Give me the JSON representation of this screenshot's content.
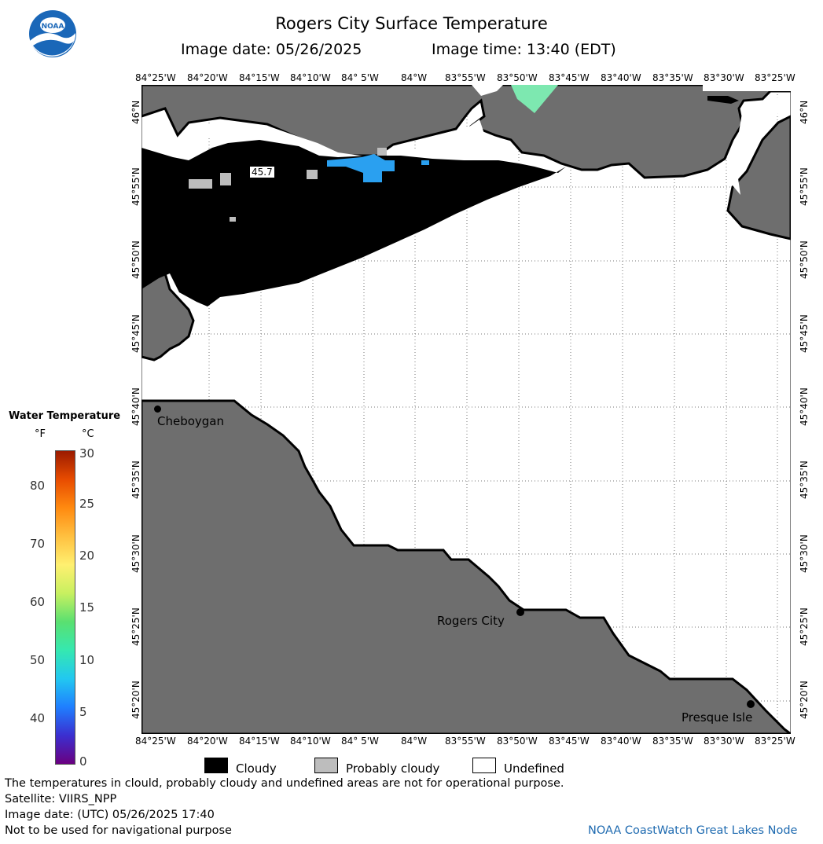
{
  "header": {
    "title": "Rogers City Surface Temperature",
    "image_date": "Image date: 05/26/2025",
    "image_time": "Image time: 13:40 (EDT)"
  },
  "logo": {
    "text": "NOAA"
  },
  "map": {
    "lon_ticks": [
      "84°25'W",
      "84°20'W",
      "84°15'W",
      "84°10'W",
      "84° 5'W",
      "84°W",
      "83°55'W",
      "83°50'W",
      "83°45'W",
      "83°40'W",
      "83°35'W",
      "83°30'W",
      "83°25'W"
    ],
    "lat_ticks": [
      "46°N",
      "45°55'N",
      "45°50'N",
      "45°45'N",
      "45°40'N",
      "45°35'N",
      "45°30'N",
      "45°25'N",
      "45°20'N"
    ],
    "cities": [
      "Cheboygan",
      "Rogers City",
      "Presque Isle"
    ],
    "sample_label": "45.7",
    "colors": {
      "land": "#6e6e6e",
      "cloud": "#000000",
      "undefined": "#ffffff",
      "probably_cloudy": "#bdbdbd",
      "warm_water": "#2aa0f0",
      "green_water": "#7de8b0"
    }
  },
  "legend": {
    "title": "Water Temperature",
    "unit_f": "°F",
    "unit_c": "°C",
    "f_values": [
      "80",
      "70",
      "60",
      "50",
      "40"
    ],
    "c_values": [
      "30",
      "25",
      "20",
      "15",
      "10",
      "5",
      "0"
    ],
    "colormap": [
      "#6a0080",
      "#3b2fd0",
      "#1f7fff",
      "#22c8f0",
      "#35e8b0",
      "#5ae070",
      "#c8f060",
      "#fff070",
      "#ffc040",
      "#ff8a10",
      "#e84c00",
      "#9b1b00"
    ]
  },
  "key": {
    "cloudy": "Cloudy",
    "probably_cloudy": "Probably cloudy",
    "undefined": "Undefined"
  },
  "footer": {
    "disclaimer": "The temperatures in clould, probably cloudy and undefined areas are not for operational purpose.",
    "satellite": "Satellite: VIIRS_NPP",
    "utc_date": "Image date: (UTC) 05/26/2025  17:40",
    "nav_warning": "Not to be used for navigational purpose",
    "credit": "NOAA CoastWatch Great Lakes Node"
  }
}
